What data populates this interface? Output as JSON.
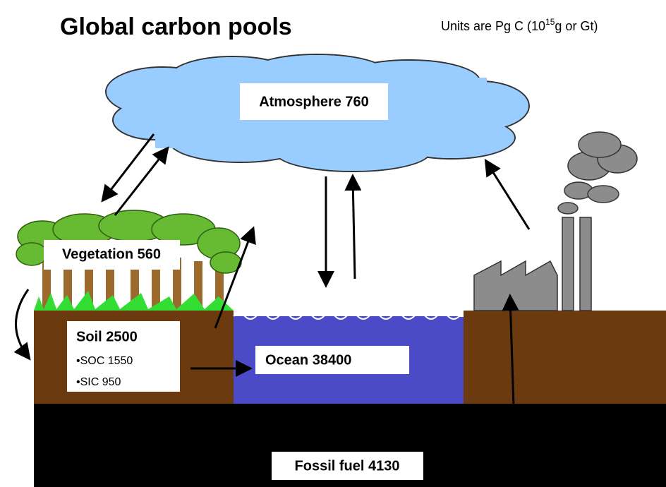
{
  "title": "Global carbon pools",
  "units": {
    "prefix": "Units are Pg C (10",
    "superscript": "15",
    "suffix": "g or Gt)"
  },
  "nodes": {
    "atmosphere": {
      "label": "Atmosphere 760"
    },
    "vegetation": {
      "label": "Vegetation 560"
    },
    "soil": {
      "label": "Soil 2500",
      "items": [
        "•SOC 1550",
        "•SIC 950"
      ]
    },
    "ocean": {
      "label": "Ocean 38400"
    },
    "fossil_fuel": {
      "label": "Fossil fuel 4130"
    }
  }
}
